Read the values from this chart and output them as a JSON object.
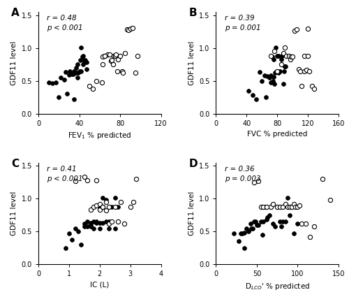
{
  "panel_A": {
    "label": "A",
    "xlabel": "FEV$_1$ % predicted",
    "ylabel": "GDF11 level",
    "r_text": "r = 0.48",
    "p_text": "p < 0.001",
    "xlim": [
      0,
      120
    ],
    "ylim": [
      0,
      1.55
    ],
    "xticks": [
      0,
      40,
      80,
      120
    ],
    "yticks": [
      0,
      0.5,
      1.0,
      1.5
    ],
    "dark_x": [
      10,
      14,
      17,
      20,
      22,
      25,
      27,
      28,
      30,
      31,
      33,
      34,
      35,
      35,
      36,
      37,
      37,
      38,
      38,
      39,
      40,
      41,
      42,
      43,
      44,
      45,
      46,
      47,
      47,
      42,
      43,
      44
    ],
    "dark_y": [
      0.47,
      0.46,
      0.47,
      0.25,
      0.55,
      0.52,
      0.63,
      0.3,
      0.59,
      0.65,
      0.6,
      0.6,
      0.22,
      0.65,
      0.62,
      0.7,
      0.62,
      0.75,
      0.55,
      0.62,
      0.65,
      0.82,
      0.65,
      0.87,
      0.88,
      0.78,
      0.82,
      0.78,
      0.68,
      1.01,
      0.83,
      0.75
    ],
    "light_x": [
      50,
      53,
      57,
      62,
      63,
      65,
      68,
      70,
      71,
      72,
      73,
      74,
      75,
      76,
      77,
      78,
      80,
      82,
      83,
      85,
      87,
      88,
      90,
      92,
      95,
      97,
      63,
      65
    ],
    "light_y": [
      0.42,
      0.38,
      0.5,
      0.48,
      0.87,
      0.88,
      0.9,
      0.9,
      0.8,
      0.82,
      0.75,
      0.88,
      0.88,
      0.9,
      0.65,
      0.83,
      0.88,
      0.65,
      0.62,
      0.92,
      1.28,
      1.27,
      1.29,
      1.3,
      0.62,
      0.88,
      0.75,
      0.88
    ]
  },
  "panel_B": {
    "label": "B",
    "xlabel": "FVC % predicted",
    "ylabel": "GDF11 level",
    "r_text": "r = 0.39",
    "p_text": "p = 0.001",
    "xlim": [
      0,
      160
    ],
    "ylim": [
      0,
      1.55
    ],
    "xticks": [
      0,
      40,
      80,
      120,
      160
    ],
    "yticks": [
      0,
      0.5,
      1.0,
      1.5
    ],
    "dark_x": [
      42,
      48,
      52,
      57,
      60,
      63,
      65,
      67,
      70,
      72,
      73,
      75,
      75,
      76,
      77,
      78,
      80,
      80,
      82,
      83,
      85,
      86,
      88,
      89,
      90,
      90,
      91,
      72,
      78,
      80,
      82,
      74
    ],
    "dark_y": [
      0.35,
      0.28,
      0.22,
      0.63,
      0.5,
      0.58,
      0.25,
      0.57,
      0.55,
      0.48,
      0.87,
      0.83,
      0.56,
      0.45,
      0.62,
      1.01,
      0.88,
      0.65,
      0.88,
      0.65,
      0.83,
      0.88,
      0.45,
      0.65,
      0.72,
      0.72,
      0.72,
      0.58,
      0.63,
      0.65,
      0.62,
      0.5
    ],
    "light_x": [
      72,
      76,
      80,
      85,
      88,
      90,
      92,
      95,
      97,
      98,
      100,
      103,
      105,
      108,
      110,
      112,
      115,
      118,
      120,
      122,
      125,
      128,
      115,
      120
    ],
    "light_y": [
      0.88,
      0.95,
      0.65,
      0.75,
      0.92,
      1.01,
      0.88,
      0.88,
      0.83,
      0.87,
      0.87,
      1.26,
      1.28,
      0.68,
      0.65,
      0.42,
      0.65,
      0.67,
      1.29,
      0.65,
      0.42,
      0.38,
      0.88,
      0.88
    ]
  },
  "panel_C": {
    "label": "C",
    "xlabel": "IC (L)",
    "ylabel": "GDF11 level",
    "r_text": "r = 0.41",
    "p_text": "p < 0.001",
    "xlim": [
      0,
      4
    ],
    "ylim": [
      0,
      1.55
    ],
    "xticks": [
      0,
      1,
      2,
      3,
      4
    ],
    "yticks": [
      0,
      0.5,
      1.0,
      1.5
    ],
    "dark_x": [
      0.9,
      1.0,
      1.1,
      1.2,
      1.3,
      1.4,
      1.5,
      1.5,
      1.6,
      1.6,
      1.7,
      1.7,
      1.7,
      1.8,
      1.8,
      1.9,
      1.9,
      2.0,
      2.0,
      2.0,
      2.1,
      2.1,
      2.2,
      2.2,
      2.3,
      2.3,
      2.4,
      2.5,
      2.6,
      2.5
    ],
    "dark_y": [
      0.25,
      0.47,
      0.38,
      0.55,
      0.5,
      0.3,
      0.58,
      0.62,
      0.58,
      0.65,
      0.63,
      0.58,
      0.6,
      0.55,
      0.65,
      0.65,
      0.63,
      0.63,
      0.88,
      0.55,
      0.63,
      1.01,
      0.65,
      0.98,
      0.65,
      0.55,
      0.88,
      0.55,
      0.88,
      1.01
    ],
    "light_x": [
      1.2,
      1.5,
      1.6,
      1.7,
      1.8,
      1.9,
      2.0,
      2.0,
      2.1,
      2.1,
      2.2,
      2.2,
      2.3,
      2.3,
      2.4,
      2.5,
      2.6,
      2.7,
      2.8,
      3.0,
      3.1,
      3.2,
      1.9
    ],
    "light_y": [
      1.27,
      1.33,
      1.28,
      0.83,
      0.88,
      0.9,
      0.92,
      0.83,
      0.88,
      0.88,
      0.82,
      0.95,
      0.88,
      0.62,
      0.65,
      0.88,
      0.65,
      0.95,
      0.62,
      0.88,
      0.95,
      1.3,
      1.28
    ]
  },
  "panel_D": {
    "label": "D",
    "xlabel": "D$_{LCO}$' % predicted",
    "ylabel": "GDF11 level",
    "r_text": "r = 0.36",
    "p_text": "p = 0.003",
    "xlim": [
      0,
      150
    ],
    "ylim": [
      0,
      1.55
    ],
    "xticks": [
      0,
      50,
      100,
      150
    ],
    "yticks": [
      0,
      0.5,
      1.0,
      1.5
    ],
    "dark_x": [
      22,
      28,
      30,
      32,
      35,
      35,
      37,
      40,
      42,
      43,
      45,
      47,
      48,
      50,
      52,
      55,
      57,
      58,
      60,
      62,
      63,
      65,
      67,
      70,
      72,
      75,
      78,
      80,
      82,
      85,
      88,
      90,
      95,
      100
    ],
    "dark_y": [
      0.47,
      0.35,
      0.47,
      0.47,
      0.48,
      0.25,
      0.55,
      0.5,
      0.62,
      0.55,
      0.55,
      0.65,
      0.65,
      0.6,
      0.6,
      0.65,
      0.45,
      0.65,
      0.87,
      0.68,
      0.72,
      0.75,
      0.88,
      0.62,
      0.58,
      0.88,
      0.65,
      0.58,
      0.65,
      0.65,
      1.01,
      0.75,
      0.47,
      0.62
    ],
    "light_x": [
      47,
      52,
      55,
      58,
      62,
      67,
      70,
      75,
      78,
      82,
      85,
      88,
      90,
      93,
      95,
      97,
      100,
      102,
      105,
      110,
      115,
      120,
      130,
      140
    ],
    "light_y": [
      1.25,
      1.27,
      0.88,
      0.88,
      0.88,
      0.88,
      0.92,
      0.88,
      0.88,
      0.88,
      0.92,
      0.88,
      0.88,
      0.88,
      0.92,
      0.88,
      0.88,
      0.9,
      0.62,
      0.62,
      0.42,
      0.58,
      1.3,
      0.98
    ]
  }
}
